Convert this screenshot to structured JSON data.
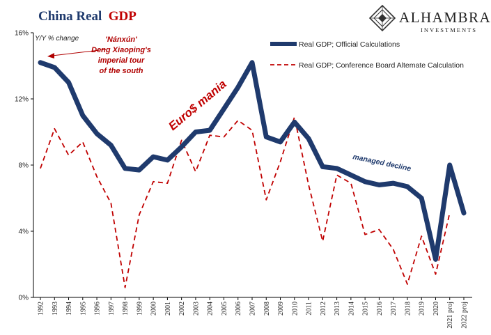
{
  "chart_data": {
    "type": "line",
    "title_part1": "China Real",
    "title_part2": "GDP",
    "unit_label": "Y/Y % change",
    "ylim": [
      0,
      16
    ],
    "yticks": [
      0,
      4,
      8,
      12,
      16
    ],
    "ytick_labels": [
      "0%",
      "4%",
      "8%",
      "12%",
      "16%"
    ],
    "categories": [
      "1992",
      "1993",
      "1994",
      "1995",
      "1996",
      "1997",
      "1998",
      "1999",
      "2000",
      "2001",
      "2002",
      "2003",
      "2004",
      "2005",
      "2006",
      "2007",
      "2008",
      "2009",
      "2010",
      "2011",
      "2012",
      "2013",
      "2014",
      "2015",
      "2016",
      "2017",
      "2018",
      "2019",
      "2020",
      "2021 proj",
      "2022 proj"
    ],
    "series": [
      {
        "name": "Real GDP; Official Calculations",
        "color": "#1f3a6d",
        "style": "solid",
        "values": [
          14.2,
          13.9,
          13.0,
          11.0,
          9.9,
          9.2,
          7.8,
          7.7,
          8.5,
          8.3,
          9.1,
          10.0,
          10.1,
          11.4,
          12.7,
          14.2,
          9.7,
          9.4,
          10.6,
          9.6,
          7.9,
          7.8,
          7.4,
          7.0,
          6.8,
          6.9,
          6.7,
          6.0,
          2.3,
          8.0,
          5.1
        ]
      },
      {
        "name": "Real GDP; Conference Board Altemate Calculation",
        "color": "#c00000",
        "style": "dashed",
        "values": [
          7.8,
          10.2,
          8.6,
          9.4,
          7.3,
          5.7,
          0.6,
          5.0,
          7.0,
          6.9,
          9.5,
          7.6,
          9.8,
          9.7,
          10.7,
          10.1,
          5.9,
          8.2,
          10.9,
          6.8,
          3.4,
          7.4,
          6.9,
          3.8,
          4.1,
          2.9,
          0.8,
          3.7,
          1.4,
          5.1,
          null
        ]
      }
    ],
    "legend_position": "top-right",
    "grid": false,
    "annotations": {
      "nanxun_line1": "'Nánxún'",
      "nanxun_line2": "Deng Xiaoping's",
      "nanxun_line3": "imperial tour",
      "nanxun_line4": "of the south",
      "euro": "Euro$ mania",
      "managed": "managed decline"
    }
  },
  "logo": {
    "name": "ALHAMBRA",
    "subtitle": "INVESTMENTS",
    "icon": "diamond-lattice-icon"
  }
}
